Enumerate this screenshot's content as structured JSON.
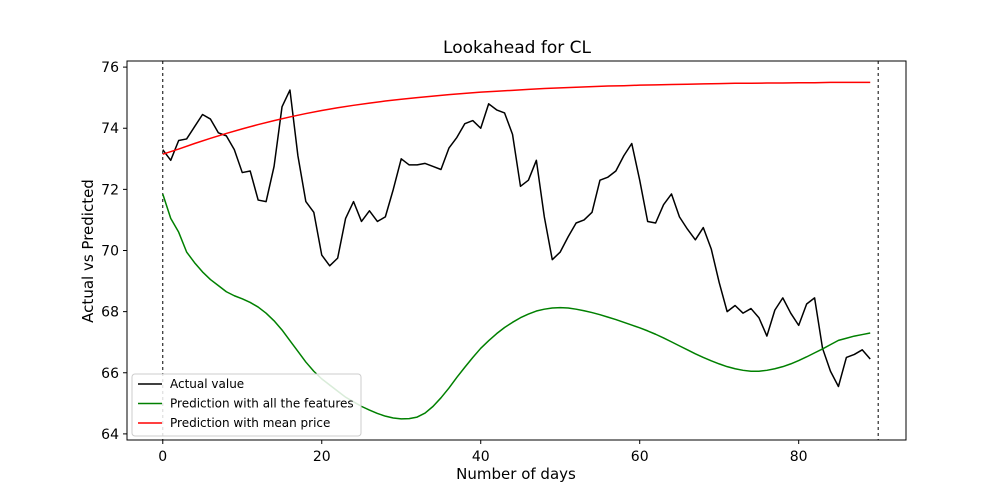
{
  "chart_data": {
    "type": "line",
    "title": "Lookahead for CL",
    "xlabel": "Number of days",
    "ylabel": "Actual vs Predicted",
    "xlim": [
      -4.5,
      93.5
    ],
    "ylim": [
      63.8,
      76.2
    ],
    "xticks": [
      0,
      20,
      40,
      60,
      80
    ],
    "yticks": [
      64,
      66,
      68,
      70,
      72,
      74,
      76
    ],
    "vlines": [
      0,
      90
    ],
    "grid": false,
    "legend": "lower-left",
    "series": [
      {
        "name": "Actual value",
        "color": "#000000",
        "x": [
          0,
          1,
          2,
          3,
          4,
          5,
          6,
          7,
          8,
          9,
          10,
          11,
          12,
          13,
          14,
          15,
          16,
          17,
          18,
          19,
          20,
          21,
          22,
          23,
          24,
          25,
          26,
          27,
          28,
          29,
          30,
          31,
          32,
          33,
          34,
          35,
          36,
          37,
          38,
          39,
          40,
          41,
          42,
          43,
          44,
          45,
          46,
          47,
          48,
          49,
          50,
          51,
          52,
          53,
          54,
          55,
          56,
          57,
          58,
          59,
          60,
          61,
          62,
          63,
          64,
          65,
          66,
          67,
          68,
          69,
          70,
          71,
          72,
          73,
          74,
          75,
          76,
          77,
          78,
          79,
          80,
          81,
          82,
          83,
          84,
          85,
          86,
          87,
          88,
          89
        ],
        "y": [
          73.3,
          72.95,
          73.6,
          73.65,
          74.05,
          74.45,
          74.3,
          73.85,
          73.75,
          73.3,
          72.55,
          72.6,
          71.65,
          71.6,
          72.75,
          74.7,
          75.25,
          73.1,
          71.6,
          71.25,
          69.85,
          69.5,
          69.75,
          71.05,
          71.6,
          70.95,
          71.3,
          70.95,
          71.1,
          72.0,
          73.0,
          72.8,
          72.8,
          72.85,
          72.75,
          72.65,
          73.35,
          73.7,
          74.15,
          74.25,
          74.0,
          74.8,
          74.6,
          74.5,
          73.8,
          72.1,
          72.3,
          72.95,
          71.1,
          69.7,
          69.95,
          70.45,
          70.9,
          71.0,
          71.25,
          72.3,
          72.4,
          72.6,
          73.1,
          73.5,
          72.3,
          70.95,
          70.9,
          71.5,
          71.85,
          71.1,
          70.7,
          70.35,
          70.75,
          70.05,
          68.95,
          68.0,
          68.2,
          67.95,
          68.1,
          67.8,
          67.2,
          68.05,
          68.45,
          67.95,
          67.55,
          68.25,
          68.45,
          66.8,
          66.05,
          65.55,
          66.5,
          66.6,
          66.75,
          66.45
        ]
      },
      {
        "name": "Prediction with all the features",
        "color": "#008000",
        "x": [
          0,
          1,
          2,
          3,
          4,
          5,
          6,
          7,
          8,
          9,
          10,
          11,
          12,
          13,
          14,
          15,
          16,
          17,
          18,
          19,
          20,
          21,
          22,
          23,
          24,
          25,
          26,
          27,
          28,
          29,
          30,
          31,
          32,
          33,
          34,
          35,
          36,
          37,
          38,
          39,
          40,
          41,
          42,
          43,
          44,
          45,
          46,
          47,
          48,
          49,
          50,
          51,
          52,
          53,
          54,
          55,
          56,
          57,
          58,
          59,
          60,
          61,
          62,
          63,
          64,
          65,
          66,
          67,
          68,
          69,
          70,
          71,
          72,
          73,
          74,
          75,
          76,
          77,
          78,
          79,
          80,
          81,
          82,
          83,
          84,
          85,
          86,
          87,
          88,
          89
        ],
        "y": [
          71.85,
          71.05,
          70.6,
          69.95,
          69.6,
          69.3,
          69.05,
          68.85,
          68.65,
          68.52,
          68.42,
          68.3,
          68.15,
          67.95,
          67.7,
          67.4,
          67.05,
          66.7,
          66.35,
          66.05,
          65.8,
          65.6,
          65.4,
          65.2,
          65.05,
          64.9,
          64.78,
          64.67,
          64.58,
          64.52,
          64.49,
          64.5,
          64.55,
          64.68,
          64.9,
          65.18,
          65.5,
          65.85,
          66.18,
          66.5,
          66.8,
          67.05,
          67.28,
          67.48,
          67.65,
          67.8,
          67.92,
          68.02,
          68.08,
          68.12,
          68.13,
          68.12,
          68.08,
          68.03,
          67.97,
          67.9,
          67.82,
          67.74,
          67.65,
          67.56,
          67.47,
          67.37,
          67.26,
          67.14,
          67.01,
          66.88,
          66.75,
          66.62,
          66.5,
          66.39,
          66.29,
          66.2,
          66.13,
          66.08,
          66.05,
          66.05,
          66.08,
          66.13,
          66.2,
          66.29,
          66.4,
          66.52,
          66.65,
          66.78,
          66.92,
          67.06,
          67.13,
          67.2,
          67.25,
          67.3
        ]
      },
      {
        "name": "Prediction with mean price",
        "color": "#ff0000",
        "x": [
          0,
          2,
          4,
          6,
          8,
          10,
          12,
          14,
          16,
          18,
          20,
          22,
          24,
          26,
          28,
          30,
          32,
          34,
          36,
          38,
          40,
          42,
          44,
          46,
          48,
          50,
          52,
          54,
          56,
          58,
          60,
          62,
          64,
          66,
          68,
          70,
          72,
          74,
          76,
          78,
          80,
          82,
          84,
          86,
          88,
          89
        ],
        "y": [
          73.15,
          73.32,
          73.5,
          73.67,
          73.83,
          73.98,
          74.12,
          74.25,
          74.37,
          74.48,
          74.58,
          74.67,
          74.75,
          74.82,
          74.89,
          74.95,
          75.0,
          75.05,
          75.1,
          75.14,
          75.18,
          75.21,
          75.24,
          75.27,
          75.3,
          75.32,
          75.34,
          75.36,
          75.38,
          75.39,
          75.41,
          75.42,
          75.43,
          75.44,
          75.45,
          75.46,
          75.47,
          75.47,
          75.48,
          75.48,
          75.49,
          75.49,
          75.5,
          75.5,
          75.5,
          75.5
        ]
      }
    ]
  }
}
